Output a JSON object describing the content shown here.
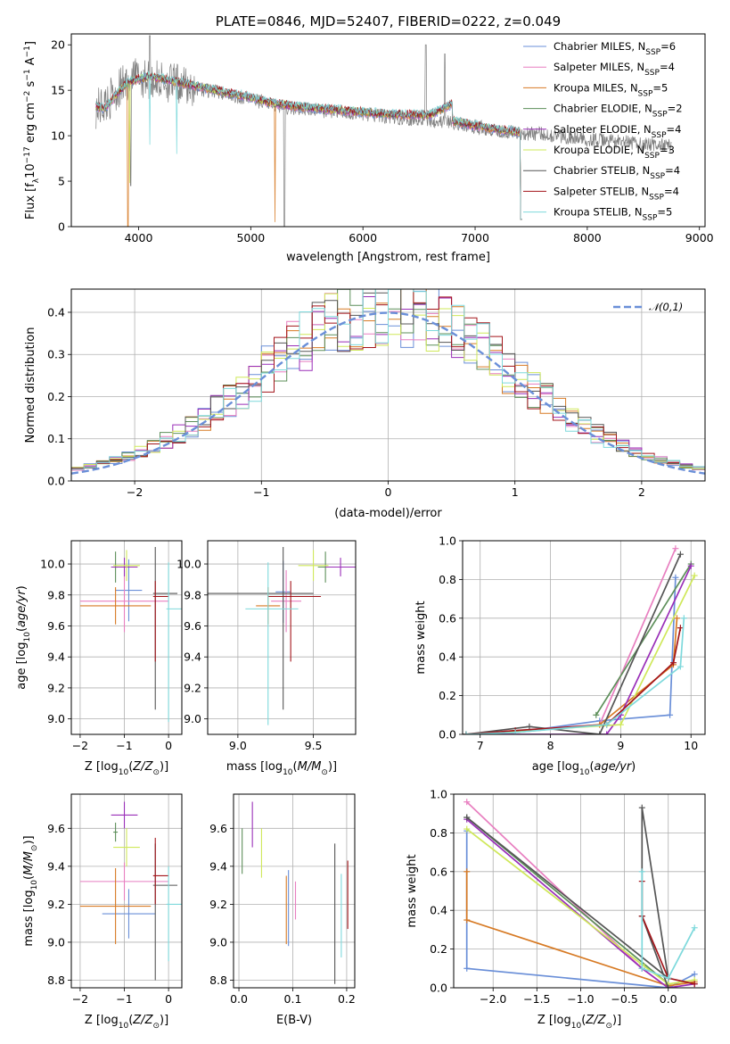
{
  "series_styles": [
    {
      "key": "chab_miles",
      "color": "#6a8fd8"
    },
    {
      "key": "salp_miles",
      "color": "#e87fc0"
    },
    {
      "key": "krou_miles",
      "color": "#d77a24"
    },
    {
      "key": "chab_elodie",
      "color": "#5d8f5a"
    },
    {
      "key": "salp_elodie",
      "color": "#9a2fb8"
    },
    {
      "key": "krou_elodie",
      "color": "#cfe85a"
    },
    {
      "key": "chab_stelib",
      "color": "#555555"
    },
    {
      "key": "salp_stelib",
      "color": "#a3151a"
    },
    {
      "key": "krou_stelib",
      "color": "#7ed9dc"
    }
  ],
  "chart_data": [
    {
      "id": "spectrum",
      "type": "line",
      "title": "PLATE=0846, MJD=52407, FIBERID=0222, z=0.049",
      "xlabel": "wavelength [Angstrom, rest frame]",
      "ylabel": "Flux [f",
      "xlim": [
        3400,
        9050
      ],
      "ylim": [
        0,
        21.2
      ],
      "xticks": [
        4000,
        5000,
        6000,
        7000,
        8000,
        9000
      ],
      "yticks": [
        0,
        5,
        10,
        15,
        20
      ],
      "legend_position": "top-right",
      "legend": [
        "Chabrier MILES, N_SSP=6",
        "Salpeter MILES, N_SSP=4",
        "Kroupa MILES, N_SSP=5",
        "Chabrier ELODIE, N_SSP=2",
        "Salpeter ELODIE, N_SSP=4",
        "Kroupa ELODIE, N_SSP=3",
        "Chabrier STELIB, N_SSP=4",
        "Salpeter STELIB, N_SSP=4",
        "Kroupa STELIB, N_SSP=5"
      ],
      "data_continuum": [
        [
          3620,
          13.0
        ],
        [
          3700,
          13.5
        ],
        [
          3800,
          14.8
        ],
        [
          3900,
          16.0
        ],
        [
          4000,
          16.5
        ],
        [
          4100,
          16.2
        ],
        [
          4200,
          16.0
        ],
        [
          4300,
          15.8
        ],
        [
          4500,
          15.2
        ],
        [
          4700,
          14.8
        ],
        [
          5000,
          14.0
        ],
        [
          5200,
          13.4
        ],
        [
          5400,
          13.0
        ],
        [
          5600,
          12.8
        ],
        [
          5800,
          12.6
        ],
        [
          6000,
          12.4
        ],
        [
          6200,
          12.1
        ],
        [
          6400,
          11.9
        ],
        [
          6600,
          11.7
        ],
        [
          6800,
          11.4
        ],
        [
          7000,
          11.0
        ],
        [
          7200,
          10.6
        ],
        [
          7400,
          10.3
        ],
        [
          7600,
          10.2
        ],
        [
          7800,
          9.9
        ],
        [
          8000,
          9.6
        ],
        [
          8200,
          9.4
        ],
        [
          8400,
          9.2
        ],
        [
          8600,
          9.0
        ],
        [
          8750,
          8.9
        ]
      ],
      "model_continuum": [
        [
          3620,
          13.2
        ],
        [
          3700,
          13.0
        ],
        [
          3800,
          14.5
        ],
        [
          3900,
          15.8
        ],
        [
          4000,
          16.3
        ],
        [
          4100,
          16.5
        ],
        [
          4200,
          16.3
        ],
        [
          4300,
          16.0
        ],
        [
          4500,
          15.5
        ],
        [
          4700,
          15.0
        ],
        [
          5000,
          14.2
        ],
        [
          5200,
          13.6
        ],
        [
          5400,
          13.2
        ],
        [
          5600,
          13.0
        ],
        [
          5800,
          12.8
        ],
        [
          6000,
          12.6
        ],
        [
          6200,
          12.4
        ],
        [
          6400,
          12.3
        ],
        [
          6600,
          12.3
        ],
        [
          6790,
          13.5
        ],
        [
          6800,
          11.6
        ],
        [
          7000,
          11.1
        ],
        [
          7200,
          10.7
        ],
        [
          7400,
          10.4
        ]
      ]
    },
    {
      "id": "residuals",
      "type": "histogram",
      "xlabel": "(data-model)/error",
      "ylabel": "Normed distribution",
      "xlim": [
        -2.5,
        2.5
      ],
      "ylim": [
        0,
        0.455
      ],
      "xticks": [
        -2,
        -1,
        0,
        1,
        2
      ],
      "yticks": [
        0.0,
        0.1,
        0.2,
        0.3,
        0.4
      ],
      "legend": [
        "𝒩(0,1)"
      ],
      "legend_position": "top-right",
      "normal_curve": {
        "mean": 0,
        "sigma": 1
      }
    },
    {
      "id": "age_vs_Z",
      "type": "scatter",
      "xlabel": "Z [log",
      "ylabel": "age  [log",
      "xlim": [
        -2.2,
        0.3
      ],
      "ylim": [
        8.9,
        10.15
      ],
      "xticks": [
        -2,
        -1,
        0
      ],
      "yticks": [
        9.0,
        9.2,
        9.4,
        9.6,
        9.8,
        10.0
      ],
      "points": [
        {
          "s": 0,
          "x": -0.9,
          "y": 9.83,
          "xe": [
            0.3,
            0.3
          ],
          "ye": [
            0.2,
            0.2
          ]
        },
        {
          "s": 1,
          "x": -1.0,
          "y": 9.76,
          "xe": [
            1.0,
            1.0
          ],
          "ye": [
            0.2,
            0.2
          ]
        },
        {
          "s": 2,
          "x": -1.2,
          "y": 9.73,
          "xe": [
            0.8,
            0.8
          ],
          "ye": [
            0.12,
            0.12
          ]
        },
        {
          "s": 3,
          "x": -1.2,
          "y": 9.98,
          "xe": [
            0.05,
            0.05
          ],
          "ye": [
            0.1,
            0.1
          ]
        },
        {
          "s": 4,
          "x": -1.0,
          "y": 9.98,
          "xe": [
            0.3,
            0.3
          ],
          "ye": [
            0.06,
            0.06
          ]
        },
        {
          "s": 5,
          "x": -0.95,
          "y": 9.99,
          "xe": [
            0.3,
            0.3
          ],
          "ye": [
            0.1,
            0.1
          ]
        },
        {
          "s": 6,
          "x": -0.3,
          "y": 9.81,
          "xe": [
            0.05,
            0.5
          ],
          "ye": [
            0.75,
            0.3
          ]
        },
        {
          "s": 7,
          "x": -0.3,
          "y": 9.79,
          "xe": [
            0.05,
            0.3
          ],
          "ye": [
            0.42,
            0.1
          ]
        },
        {
          "s": 8,
          "x": 0.0,
          "y": 9.71,
          "xe": [
            0.05,
            0.3
          ],
          "ye": [
            0.73,
            0.3
          ]
        }
      ]
    },
    {
      "id": "age_vs_mass",
      "type": "scatter",
      "xlabel": "mass [log",
      "ylabel": "",
      "xlim": [
        8.8,
        9.78
      ],
      "ylim": [
        8.9,
        10.15
      ],
      "xticks": [
        9.0,
        9.5
      ],
      "yticks": [
        9.0,
        9.2,
        9.4,
        9.6,
        9.8,
        10.0
      ],
      "points": [
        {
          "s": 0,
          "x": 9.3,
          "y": 9.82,
          "xe": [
            0.05,
            0.05
          ],
          "ye": [
            0.2,
            0.2
          ]
        },
        {
          "s": 1,
          "x": 9.32,
          "y": 9.76,
          "xe": [
            0.1,
            0.1
          ],
          "ye": [
            0.2,
            0.2
          ]
        },
        {
          "s": 2,
          "x": 9.2,
          "y": 9.73,
          "xe": [
            0.08,
            0.08
          ],
          "ye": [
            0.12,
            0.12
          ]
        },
        {
          "s": 3,
          "x": 9.58,
          "y": 9.98,
          "xe": [
            0.05,
            0.05
          ],
          "ye": [
            0.1,
            0.1
          ]
        },
        {
          "s": 4,
          "x": 9.68,
          "y": 9.98,
          "xe": [
            0.1,
            0.1
          ],
          "ye": [
            0.06,
            0.06
          ]
        },
        {
          "s": 5,
          "x": 9.5,
          "y": 9.99,
          "xe": [
            0.1,
            0.1
          ],
          "ye": [
            0.1,
            0.1
          ]
        },
        {
          "s": 6,
          "x": 9.3,
          "y": 9.81,
          "xe": [
            0.5,
            0.2
          ],
          "ye": [
            0.75,
            0.3
          ]
        },
        {
          "s": 7,
          "x": 9.35,
          "y": 9.79,
          "xe": [
            0.15,
            0.2
          ],
          "ye": [
            0.42,
            0.1
          ]
        },
        {
          "s": 8,
          "x": 9.2,
          "y": 9.71,
          "xe": [
            0.15,
            0.2
          ],
          "ye": [
            0.75,
            0.3
          ]
        }
      ]
    },
    {
      "id": "massweight_vs_age",
      "type": "line",
      "xlabel": "age  [log",
      "ylabel": "mass weight",
      "xlim": [
        6.75,
        10.2
      ],
      "ylim": [
        0,
        1.0
      ],
      "xticks": [
        7,
        8,
        9,
        10
      ],
      "yticks": [
        0.0,
        0.2,
        0.4,
        0.6,
        0.8,
        1.0
      ],
      "series": [
        {
          "s": 0,
          "x": [
            6.8,
            7.5,
            8.7,
            9.7,
            9.78
          ],
          "y": [
            0.0,
            0.01,
            0.07,
            0.1,
            0.81
          ]
        },
        {
          "s": 1,
          "x": [
            6.8,
            8.7,
            9.78
          ],
          "y": [
            0.0,
            0.05,
            0.96
          ]
        },
        {
          "s": 2,
          "x": [
            6.8,
            7.5,
            8.7,
            9.75,
            9.8
          ],
          "y": [
            0.0,
            0.01,
            0.05,
            0.36,
            0.6
          ]
        },
        {
          "s": 3,
          "x": [
            8.65,
            10.0
          ],
          "y": [
            0.1,
            0.88
          ]
        },
        {
          "s": 4,
          "x": [
            6.8,
            8.8,
            9.0,
            10.0
          ],
          "y": [
            0.0,
            0.0,
            0.1,
            0.87
          ]
        },
        {
          "s": 5,
          "x": [
            6.8,
            9.0,
            10.05
          ],
          "y": [
            0.0,
            0.05,
            0.82
          ]
        },
        {
          "s": 6,
          "x": [
            6.8,
            7.7,
            8.7,
            9.85
          ],
          "y": [
            0.0,
            0.04,
            0.0,
            0.93
          ]
        },
        {
          "s": 7,
          "x": [
            6.8,
            7.5,
            8.8,
            9.75,
            9.85
          ],
          "y": [
            0.0,
            0.02,
            0.05,
            0.37,
            0.55
          ]
        },
        {
          "s": 8,
          "x": [
            6.8,
            7.5,
            8.8,
            9.85,
            9.9
          ],
          "y": [
            0.0,
            0.01,
            0.05,
            0.35,
            0.6
          ]
        }
      ]
    },
    {
      "id": "mass_vs_Z",
      "type": "scatter",
      "xlabel": "Z [log",
      "ylabel": "mass [log",
      "xlim": [
        -2.2,
        0.3
      ],
      "ylim": [
        8.76,
        9.78
      ],
      "xticks": [
        -2,
        -1,
        0
      ],
      "yticks": [
        8.8,
        9.0,
        9.2,
        9.4,
        9.6
      ],
      "points": [
        {
          "s": 0,
          "x": -0.9,
          "y": 9.15,
          "xe": [
            0.6,
            0.6
          ],
          "ye": [
            0.13,
            0.13
          ]
        },
        {
          "s": 1,
          "x": -1.0,
          "y": 9.32,
          "xe": [
            1.0,
            1.0
          ],
          "ye": [
            0.1,
            0.1
          ]
        },
        {
          "s": 2,
          "x": -1.2,
          "y": 9.19,
          "xe": [
            0.8,
            0.8
          ],
          "ye": [
            0.2,
            0.2
          ]
        },
        {
          "s": 3,
          "x": -1.2,
          "y": 9.58,
          "xe": [
            0.05,
            0.05
          ],
          "ye": [
            0.05,
            0.05
          ]
        },
        {
          "s": 4,
          "x": -1.0,
          "y": 9.67,
          "xe": [
            0.3,
            0.3
          ],
          "ye": [
            0.07,
            0.07
          ]
        },
        {
          "s": 5,
          "x": -0.95,
          "y": 9.5,
          "xe": [
            0.3,
            0.3
          ],
          "ye": [
            0.1,
            0.1
          ]
        },
        {
          "s": 6,
          "x": -0.3,
          "y": 9.3,
          "xe": [
            0.05,
            0.5
          ],
          "ye": [
            0.5,
            0.22
          ]
        },
        {
          "s": 7,
          "x": -0.3,
          "y": 9.35,
          "xe": [
            0.05,
            0.3
          ],
          "ye": [
            0.15,
            0.2
          ]
        },
        {
          "s": 8,
          "x": 0.0,
          "y": 9.2,
          "xe": [
            0.05,
            0.3
          ],
          "ye": [
            0.3,
            0.2
          ]
        }
      ]
    },
    {
      "id": "mass_vs_EBV",
      "type": "scatter",
      "xlabel": "E(B-V)",
      "ylabel": "",
      "xlim": [
        -0.01,
        0.215
      ],
      "ylim": [
        8.76,
        9.78
      ],
      "xticks": [
        0.0,
        0.1,
        0.2
      ],
      "yticks": [
        8.8,
        9.0,
        9.2,
        9.4,
        9.6
      ],
      "points": [
        {
          "s": 0,
          "x": 0.092,
          "y": 9.18,
          "xe": [
            0,
            0
          ],
          "ye": [
            0.2,
            0.2
          ]
        },
        {
          "s": 1,
          "x": 0.105,
          "y": 9.22,
          "xe": [
            0,
            0
          ],
          "ye": [
            0.1,
            0.1
          ]
        },
        {
          "s": 2,
          "x": 0.088,
          "y": 9.17,
          "xe": [
            0,
            0
          ],
          "ye": [
            0.18,
            0.18
          ]
        },
        {
          "s": 3,
          "x": 0.006,
          "y": 9.48,
          "xe": [
            0,
            0
          ],
          "ye": [
            0.12,
            0.12
          ]
        },
        {
          "s": 4,
          "x": 0.025,
          "y": 9.62,
          "xe": [
            0,
            0
          ],
          "ye": [
            0.12,
            0.12
          ]
        },
        {
          "s": 5,
          "x": 0.042,
          "y": 9.47,
          "xe": [
            0,
            0
          ],
          "ye": [
            0.13,
            0.13
          ]
        },
        {
          "s": 6,
          "x": 0.178,
          "y": 9.15,
          "xe": [
            0,
            0
          ],
          "ye": [
            0.37,
            0.37
          ]
        },
        {
          "s": 7,
          "x": 0.202,
          "y": 9.25,
          "xe": [
            0,
            0
          ],
          "ye": [
            0.18,
            0.18
          ]
        },
        {
          "s": 8,
          "x": 0.19,
          "y": 9.14,
          "xe": [
            0,
            0
          ],
          "ye": [
            0.22,
            0.22
          ]
        }
      ]
    },
    {
      "id": "massweight_vs_Z",
      "type": "line",
      "xlabel": "Z [log",
      "ylabel": "mass weight",
      "xlim": [
        -2.45,
        0.42
      ],
      "ylim": [
        0,
        1.0
      ],
      "xticks": [
        -2.0,
        -1.5,
        -1.0,
        -0.5,
        0.0
      ],
      "yticks": [
        0.0,
        0.2,
        0.4,
        0.6,
        0.8,
        1.0
      ],
      "series": [
        {
          "s": 0,
          "x": [
            -2.3,
            -2.3,
            0.0,
            0.3
          ],
          "y": [
            0.81,
            0.1,
            0.0,
            0.07
          ]
        },
        {
          "s": 1,
          "x": [
            -2.3,
            -0.3,
            0.0
          ],
          "y": [
            0.96,
            0.1,
            0.0
          ]
        },
        {
          "s": 2,
          "x": [
            -2.3,
            -2.3,
            0.0,
            0.3
          ],
          "y": [
            0.6,
            0.35,
            0.01,
            0.03
          ]
        },
        {
          "s": 3,
          "x": [
            -2.3,
            0.0
          ],
          "y": [
            0.88,
            0.02
          ]
        },
        {
          "s": 4,
          "x": [
            -2.3,
            -0.3,
            0.0,
            0.3
          ],
          "y": [
            0.87,
            0.1,
            0.0,
            0.02
          ]
        },
        {
          "s": 5,
          "x": [
            -2.3,
            -0.3,
            0.0,
            0.3
          ],
          "y": [
            0.82,
            0.12,
            0.02,
            0.04
          ]
        },
        {
          "s": 6,
          "x": [
            -2.3,
            0.0,
            -0.3,
            -0.3,
            0.0
          ],
          "y": [
            0.88,
            0.05,
            0.93,
            0.37,
            0.0
          ]
        },
        {
          "s": 7,
          "x": [
            -0.3,
            -0.3,
            0.0,
            0.3
          ],
          "y": [
            0.55,
            0.37,
            0.05,
            0.02
          ]
        },
        {
          "s": 8,
          "x": [
            -0.3,
            -0.3,
            0.0,
            0.3
          ],
          "y": [
            0.6,
            0.1,
            0.05,
            0.31
          ]
        }
      ]
    }
  ]
}
